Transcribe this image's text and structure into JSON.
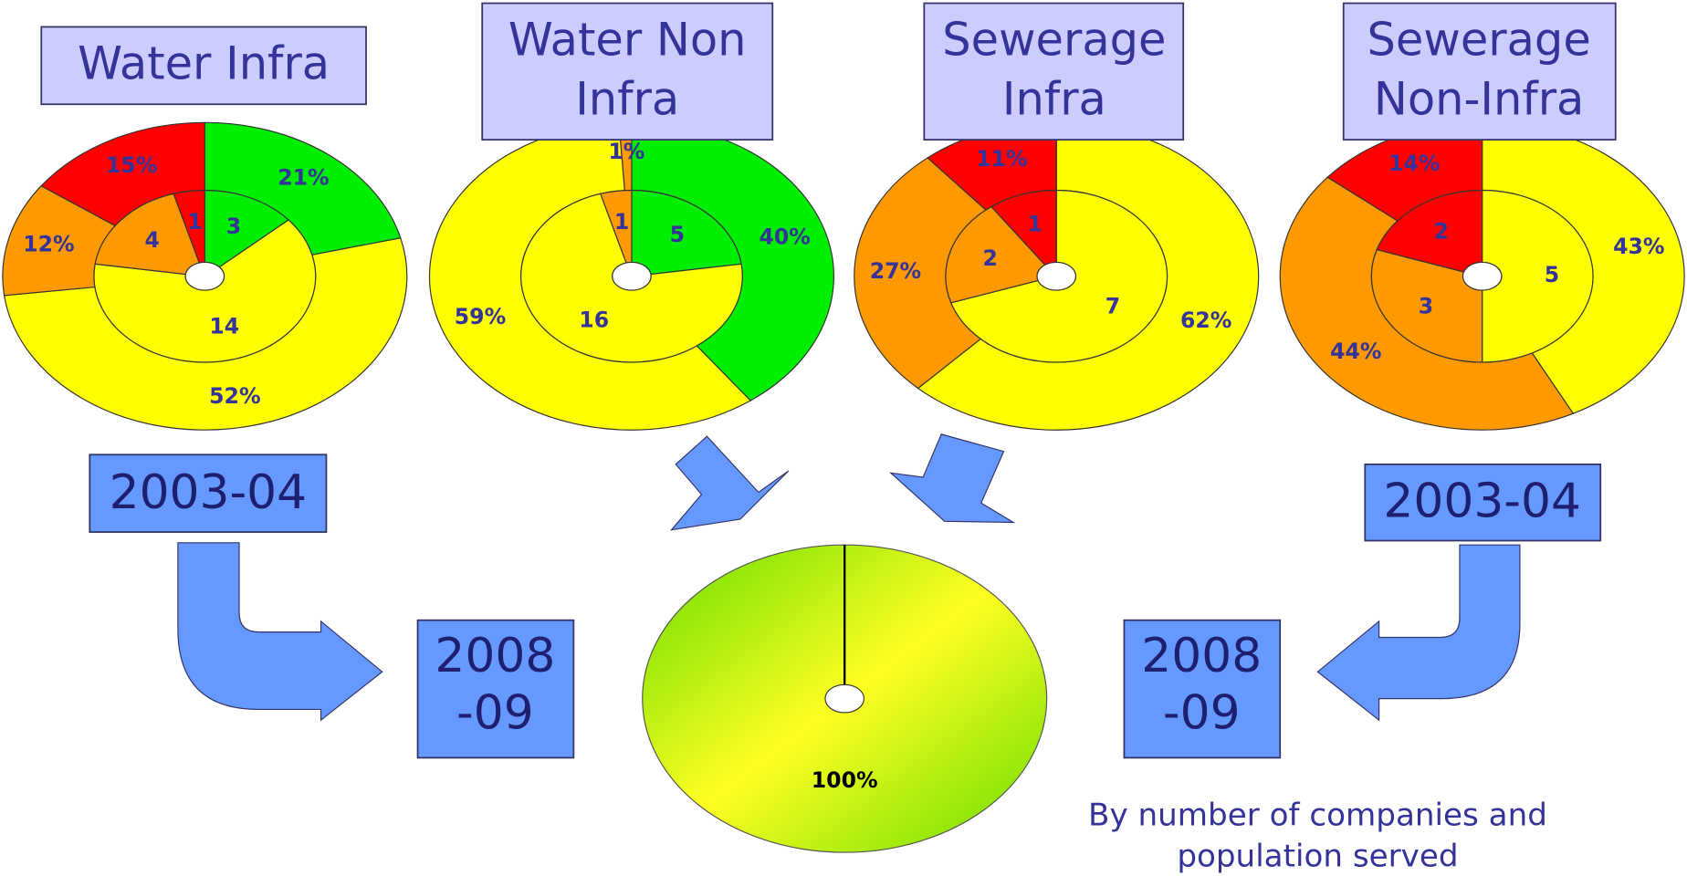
{
  "chart_data": [
    {
      "type": "donut",
      "title": [
        "Water Infra"
      ],
      "colors": [
        "#00ee00",
        "#ffff00",
        "#ff9900",
        "#ff0000"
      ],
      "outer": {
        "values": [
          21,
          52,
          12,
          15
        ],
        "value_labels": [
          "21%",
          "52%",
          "12%",
          "15%"
        ]
      },
      "inner": {
        "values": [
          3,
          14,
          4,
          1
        ]
      }
    },
    {
      "type": "donut",
      "title": [
        "Water Non",
        "Infra"
      ],
      "colors": [
        "#00ee00",
        "#ffff00",
        "#ff9900"
      ],
      "outer": {
        "values": [
          40,
          59,
          1
        ],
        "value_labels": [
          "40%",
          "59%",
          "1%"
        ]
      },
      "inner": {
        "values": [
          5,
          16,
          1
        ]
      }
    },
    {
      "type": "donut",
      "title": [
        "Sewerage",
        "Infra"
      ],
      "colors": [
        "#ffff00",
        "#ff9900",
        "#ff0000"
      ],
      "outer": {
        "values": [
          62,
          27,
          11
        ],
        "value_labels": [
          "62%",
          "27%",
          "11%"
        ]
      },
      "inner": {
        "values": [
          7,
          2,
          1
        ]
      }
    },
    {
      "type": "donut",
      "title": [
        "Sewerage",
        "Non-Infra"
      ],
      "colors": [
        "#ffff00",
        "#ff9900",
        "#ff0000"
      ],
      "outer": {
        "values": [
          43,
          44,
          14
        ],
        "value_labels": [
          "43%",
          "44%",
          "14%"
        ]
      },
      "inner": {
        "values": [
          5,
          3,
          2
        ]
      }
    },
    {
      "type": "pie",
      "colors": [
        "#66dd00",
        "#ffff22"
      ],
      "values": [
        100
      ],
      "value_labels": [
        "100%"
      ]
    }
  ],
  "boxes": [
    [
      "2003-04"
    ],
    [
      "2003-04"
    ],
    [
      "2008",
      "-09"
    ],
    [
      "2008",
      "-09"
    ]
  ],
  "note": [
    "By number of companies and",
    "population served"
  ]
}
